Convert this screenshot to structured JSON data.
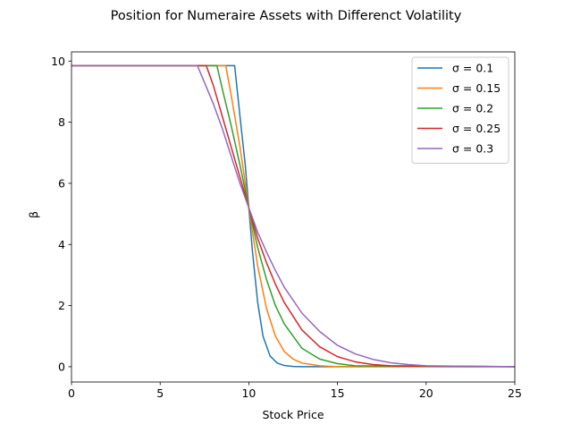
{
  "chart_data": {
    "type": "line",
    "title": "Position for Numeraire Assets with Differenct Volatility",
    "xlabel": "Stock Price",
    "ylabel": "β",
    "xlim": [
      0,
      25
    ],
    "ylim": [
      -0.5,
      10.3
    ],
    "xticks": [
      0,
      5,
      10,
      15,
      20,
      25
    ],
    "yticks": [
      0,
      2,
      4,
      6,
      8,
      10
    ],
    "grid": false,
    "legend_position": "top-right",
    "series": [
      {
        "name": "σ = 0.1",
        "color": "#1f77b4",
        "x": [
          0,
          9.2,
          9.5,
          9.8,
          10.0,
          10.2,
          10.5,
          10.8,
          11.2,
          11.6,
          12.0,
          12.5,
          13.0,
          25
        ],
        "y": [
          9.85,
          9.85,
          8.2,
          6.6,
          5.2,
          3.8,
          2.1,
          1.0,
          0.35,
          0.12,
          0.04,
          0.01,
          0.0,
          0.0
        ]
      },
      {
        "name": "σ = 0.15",
        "color": "#ff7f0e",
        "x": [
          0,
          8.7,
          9.0,
          9.5,
          10.0,
          10.5,
          11.0,
          11.5,
          12.0,
          12.5,
          13.0,
          14.0,
          15.0,
          25
        ],
        "y": [
          9.85,
          9.85,
          8.9,
          7.2,
          5.2,
          3.3,
          1.9,
          1.0,
          0.5,
          0.25,
          0.12,
          0.03,
          0.0,
          0.0
        ]
      },
      {
        "name": "σ = 0.2",
        "color": "#2ca02c",
        "x": [
          0,
          8.2,
          8.5,
          9.0,
          9.5,
          10.0,
          10.5,
          11.0,
          11.5,
          12.0,
          13.0,
          14.0,
          15.0,
          16.0,
          25
        ],
        "y": [
          9.85,
          9.85,
          9.1,
          7.9,
          6.6,
          5.2,
          3.9,
          2.85,
          2.0,
          1.4,
          0.6,
          0.25,
          0.1,
          0.03,
          0.0
        ]
      },
      {
        "name": "σ = 0.25",
        "color": "#d62728",
        "x": [
          0,
          7.6,
          8.0,
          8.5,
          9.0,
          9.5,
          10.0,
          10.5,
          11.0,
          11.5,
          12.0,
          13.0,
          14.0,
          15.0,
          16.0,
          17.0,
          18.0,
          25
        ],
        "y": [
          9.85,
          9.85,
          9.2,
          8.2,
          7.2,
          6.2,
          5.2,
          4.2,
          3.4,
          2.7,
          2.1,
          1.2,
          0.65,
          0.33,
          0.16,
          0.07,
          0.03,
          0.0
        ]
      },
      {
        "name": "σ = 0.3",
        "color": "#9467bd",
        "x": [
          0,
          7.1,
          7.5,
          8.0,
          8.5,
          9.0,
          9.5,
          10.0,
          10.5,
          11.0,
          11.5,
          12.0,
          13.0,
          14.0,
          15.0,
          16.0,
          17.0,
          18.0,
          19.0,
          20.0,
          25
        ],
        "y": [
          9.85,
          9.85,
          9.3,
          8.6,
          7.8,
          6.9,
          6.0,
          5.2,
          4.4,
          3.75,
          3.15,
          2.6,
          1.75,
          1.15,
          0.7,
          0.42,
          0.24,
          0.13,
          0.07,
          0.03,
          0.0
        ]
      }
    ]
  }
}
